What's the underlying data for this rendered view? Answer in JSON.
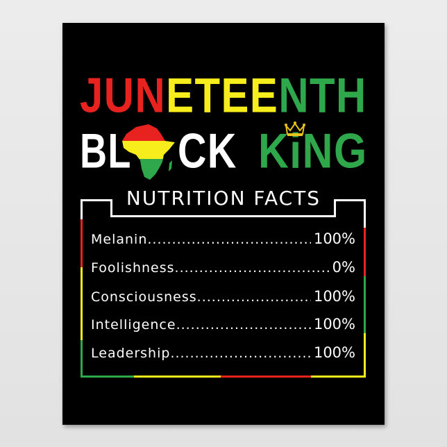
{
  "title_line1": [
    {
      "text": "JUN",
      "color": "#e8231f"
    },
    {
      "text": "ETEE",
      "color": "#f7ec1c"
    },
    {
      "text": "NTH",
      "color": "#2ea84a"
    }
  ],
  "title_line2": {
    "left": {
      "text": "BL",
      "color": "#ffffff"
    },
    "middle": {
      "text": "CK",
      "color": "#ffffff"
    },
    "right_k": {
      "text": "K",
      "color": "#2ea84a"
    },
    "right_i": {
      "text": "i",
      "color": "#2ea84a"
    },
    "right_rest": {
      "text": "NG",
      "color": "#2ea84a"
    },
    "africa_icon": "africa-map-red-yellow-green",
    "crown_icon": "gold-crown"
  },
  "heading": "NUTRITION FACTS",
  "facts": [
    {
      "label": "Melanin",
      "value": "100%"
    },
    {
      "label": "Foolishness",
      "value": "0%"
    },
    {
      "label": "Consciousness",
      "value": "100%"
    },
    {
      "label": "Intelligence",
      "value": "100%"
    },
    {
      "label": "Leadership",
      "value": "100%"
    }
  ],
  "colors": {
    "red": "#e8231f",
    "yellow": "#f7ec1c",
    "green": "#2ea84a",
    "white": "#ffffff",
    "background": "#000000"
  }
}
